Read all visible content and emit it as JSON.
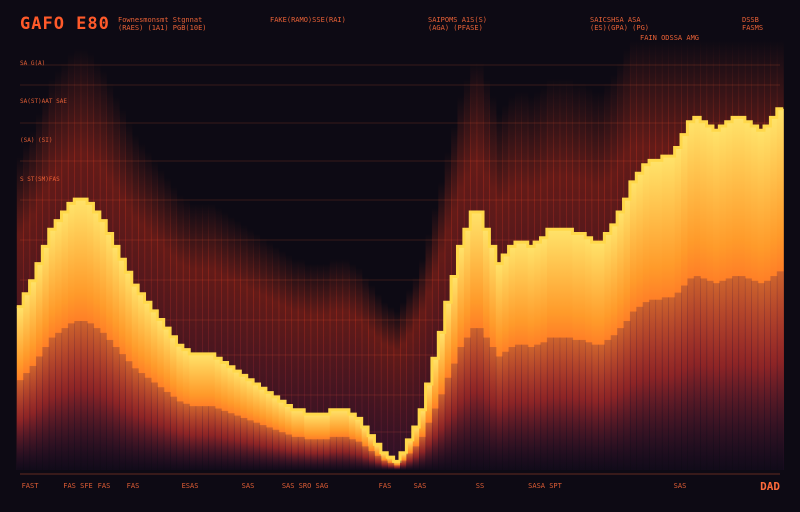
{
  "header": {
    "brand": "GAFO E80",
    "subtitle_blocks": [
      "Fownesmonsmt Stgnnat\n(RAES) (1A1) PGB(10E)",
      "FAKE(RAMO)SSE(RAI)",
      "SAIPOMS A1S(S)\n(AGA) (PFASE)",
      "SAICSHSA ASA\n(ES)(GPA) (PG)",
      "FAIN ODSSA AMG",
      "DSSB\nFASMS"
    ]
  },
  "y_labels": [
    "SA G(A)",
    "SA(ST)AAT SAE",
    "(SA) (SI)",
    "S ST(SM)FAS"
  ],
  "x_labels": [
    "FAST",
    "FAS SFE",
    "FAS",
    "FAS",
    "ESAS",
    "SAS",
    "SAS SRO SAG",
    "FAS",
    "SAS",
    "SS",
    "SASA SPT",
    "SAS"
  ],
  "footer": {
    "corner_label": "DAD"
  },
  "chart_data": {
    "type": "area",
    "x": [
      0,
      1,
      2,
      3,
      4,
      5,
      6,
      7,
      8,
      9,
      10,
      11,
      12,
      13,
      14,
      15,
      16,
      17,
      18,
      19,
      20,
      21,
      22,
      23,
      24,
      25,
      26,
      27,
      28,
      29,
      30,
      31,
      32,
      33,
      34,
      35,
      36,
      37,
      38,
      39,
      40,
      41,
      42,
      43,
      44,
      45,
      46,
      47,
      48,
      49,
      50,
      51,
      52,
      53,
      54,
      55,
      56,
      57,
      58,
      59,
      60,
      61,
      62,
      63,
      64,
      65,
      66,
      67,
      68,
      69,
      70,
      71,
      72,
      73,
      74,
      75,
      76,
      77,
      78,
      79,
      80,
      81,
      82,
      83,
      84,
      85,
      86,
      87,
      88,
      89,
      90,
      91,
      92,
      93,
      94,
      95,
      96,
      97,
      98,
      99,
      100,
      101,
      102,
      103,
      104,
      105,
      106,
      107,
      108,
      109,
      110,
      111,
      112,
      113,
      114,
      115,
      116,
      117,
      118,
      119
    ],
    "series": [
      {
        "values": [
          0.38,
          0.41,
          0.44,
          0.48,
          0.52,
          0.56,
          0.58,
          0.6,
          0.62,
          0.63,
          0.63,
          0.62,
          0.6,
          0.58,
          0.55,
          0.52,
          0.49,
          0.46,
          0.43,
          0.41,
          0.39,
          0.37,
          0.35,
          0.33,
          0.31,
          0.29,
          0.28,
          0.27,
          0.27,
          0.27,
          0.27,
          0.26,
          0.25,
          0.24,
          0.23,
          0.22,
          0.21,
          0.2,
          0.19,
          0.18,
          0.17,
          0.16,
          0.15,
          0.14,
          0.14,
          0.13,
          0.13,
          0.13,
          0.13,
          0.14,
          0.14,
          0.14,
          0.13,
          0.12,
          0.1,
          0.08,
          0.06,
          0.04,
          0.03,
          0.02,
          0.04,
          0.07,
          0.1,
          0.14,
          0.2,
          0.26,
          0.32,
          0.39,
          0.45,
          0.52,
          0.56,
          0.6,
          0.6,
          0.56,
          0.52,
          0.48,
          0.5,
          0.52,
          0.53,
          0.53,
          0.52,
          0.53,
          0.54,
          0.56,
          0.56,
          0.56,
          0.56,
          0.55,
          0.55,
          0.54,
          0.53,
          0.53,
          0.55,
          0.57,
          0.6,
          0.63,
          0.67,
          0.69,
          0.71,
          0.72,
          0.72,
          0.73,
          0.73,
          0.75,
          0.78,
          0.81,
          0.82,
          0.81,
          0.8,
          0.79,
          0.8,
          0.81,
          0.82,
          0.82,
          0.81,
          0.8,
          0.79,
          0.8,
          0.82,
          0.84
        ],
        "colors": [
          "#ffe066",
          "#ff3a1e",
          "#3a1a40"
        ]
      }
    ],
    "ylim": [
      0,
      1
    ],
    "grid": true
  }
}
